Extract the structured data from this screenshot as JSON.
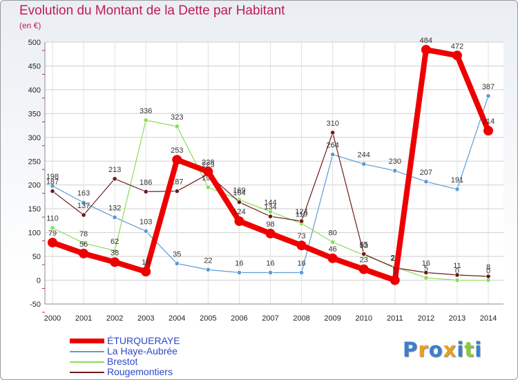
{
  "chart_data": {
    "type": "line",
    "title": "Evolution du Montant de la Dette par Habitant",
    "subtitle": "(en €)",
    "x": [
      "2000",
      "2001",
      "2002",
      "2003",
      "2004",
      "2005",
      "2006",
      "2007",
      "2008",
      "2009",
      "2010",
      "2011",
      "2012",
      "2013",
      "2014"
    ],
    "ylim": [
      -50,
      500
    ],
    "yticks": [
      -50,
      0,
      50,
      100,
      150,
      200,
      250,
      300,
      350,
      400,
      450,
      500
    ],
    "series": [
      {
        "name": "ÉTURQUERAYE",
        "color": "#ee0000",
        "values": [
          79,
          56,
          38,
          18,
          253,
          228,
          124,
          98,
          73,
          46,
          23,
          0,
          484,
          472,
          314
        ]
      },
      {
        "name": "La Haye-Aubrée",
        "color": "#5b9bd5",
        "values": [
          198,
          163,
          132,
          103,
          35,
          22,
          16,
          16,
          16,
          264,
          244,
          230,
          207,
          191,
          387
        ]
      },
      {
        "name": "Brestot",
        "color": "#88dd55",
        "values": [
          110,
          78,
          62,
          336,
          323,
          195,
          169,
          144,
          119,
          80,
          53,
          28,
          5,
          0,
          0
        ]
      },
      {
        "name": "Rougemontiers",
        "color": "#6b1a1a",
        "values": [
          187,
          137,
          213,
          186,
          187,
          223,
          164,
          134,
          124,
          310,
          55,
          26,
          16,
          11,
          8
        ]
      }
    ]
  },
  "logo": {
    "text": "Proxiti",
    "colors": [
      "#3a7fd0",
      "#e8a020",
      "#3a7fd0",
      "#e8a020",
      "#3a7fd0",
      "#88cc33",
      "#3a7fd0"
    ]
  }
}
